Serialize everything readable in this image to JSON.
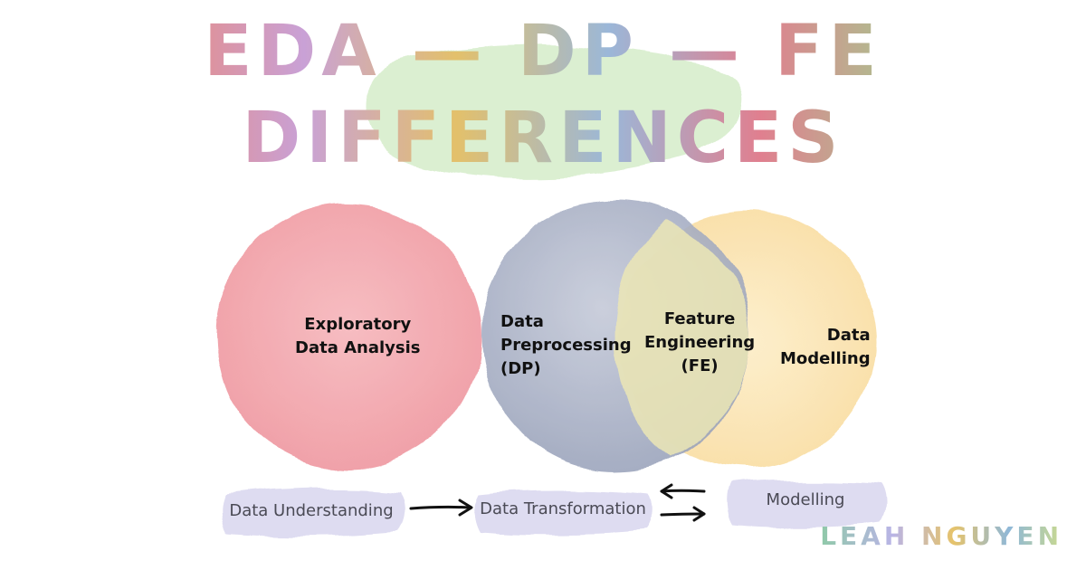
{
  "title": {
    "line1": "EDA — DP — FE",
    "line2": "DIFFERENCES"
  },
  "circles": [
    {
      "id": "eda",
      "lines": [
        "Exploratory",
        "Data Analysis"
      ],
      "color": "#f2a3aa"
    },
    {
      "id": "dp",
      "lines": [
        "Data",
        "Preprocessing",
        "(DP)"
      ],
      "color": "#aab3c8"
    },
    {
      "id": "fe",
      "lines": [
        "Feature",
        "Engineering",
        "(FE)"
      ],
      "color": "#e7e3b4"
    },
    {
      "id": "dm",
      "lines": [
        "Data",
        "Modelling"
      ],
      "color": "#fbe3b0"
    }
  ],
  "stages": [
    {
      "label": "Data Understanding"
    },
    {
      "label": "Data Transformation"
    },
    {
      "label": "Modelling"
    }
  ],
  "author": "LEAH NGUYEN",
  "colors": {
    "title_wash": "#cfeac2",
    "stage_wash": "#d9d6ef",
    "arrow": "#111111"
  }
}
